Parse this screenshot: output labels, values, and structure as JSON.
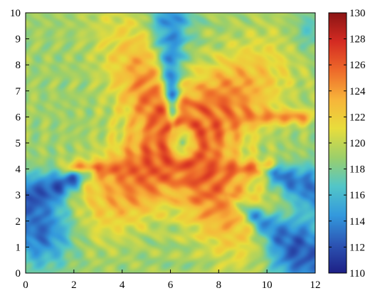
{
  "chart_data": {
    "type": "heatmap",
    "title": "",
    "xlabel": "",
    "ylabel": "",
    "xlim": [
      0,
      12
    ],
    "ylim": [
      0,
      10
    ],
    "x_ticks": [
      0,
      2,
      4,
      6,
      8,
      10,
      12
    ],
    "y_ticks": [
      0,
      1,
      2,
      3,
      4,
      5,
      6,
      7,
      8,
      9,
      10
    ],
    "colorbar": {
      "min": 110,
      "max": 130,
      "ticks": [
        110,
        112,
        114,
        116,
        118,
        120,
        122,
        124,
        126,
        128,
        130
      ],
      "colormap": "jet",
      "stops": [
        "#1d1f85",
        "#2c55b4",
        "#3399dd",
        "#52c6c8",
        "#9ccf6a",
        "#e8dd3c",
        "#f7b43a",
        "#ee6a2a",
        "#d42b22",
        "#8b1414"
      ]
    },
    "features": {
      "center": [
        6.5,
        5.0
      ],
      "center_value": 118,
      "peak_value": 126,
      "background_value": 119,
      "low_corner_value": 112,
      "arm_angles_deg": [
        40,
        120,
        215,
        305
      ],
      "horizontal_beams": [
        {
          "y": 4.0,
          "x_start": 2.0,
          "x_end": 10.0,
          "value": 126
        },
        {
          "y": 6.0,
          "x_start": 6.5,
          "x_end": 11.5,
          "value": 125
        }
      ],
      "low_wedges": [
        {
          "from": [
            6.1,
            5.3
          ],
          "to": [
            6.0,
            10.0
          ],
          "value": 114
        },
        {
          "from": [
            3.0,
            4.0
          ],
          "to": [
            0.0,
            2.8
          ],
          "value": 112
        },
        {
          "from": [
            9.5,
            4.1
          ],
          "to": [
            12.0,
            3.2
          ],
          "value": 113
        },
        {
          "from": [
            8.3,
            3.0
          ],
          "to": [
            12.0,
            0.5
          ],
          "value": 114
        }
      ]
    }
  }
}
